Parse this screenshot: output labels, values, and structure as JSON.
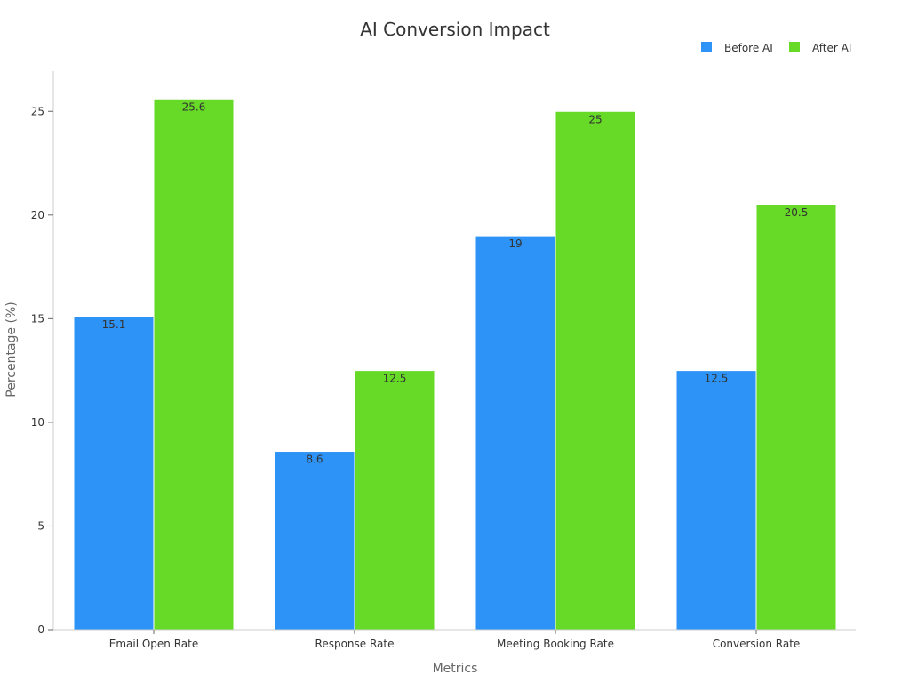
{
  "chart_data": {
    "type": "bar",
    "title": "AI Conversion Impact",
    "xlabel": "Metrics",
    "ylabel": "Percentage (%)",
    "categories": [
      "Email Open Rate",
      "Response Rate",
      "Meeting Booking Rate",
      "Conversion Rate"
    ],
    "series": [
      {
        "name": "Before AI",
        "color": "#2E93F7",
        "values": [
          15.1,
          8.6,
          19,
          12.5
        ]
      },
      {
        "name": "After AI",
        "color": "#66DA26",
        "values": [
          25.6,
          12.5,
          25,
          20.5
        ]
      }
    ],
    "ylim": [
      0,
      27
    ],
    "yticks": [
      0,
      5,
      10,
      15,
      20,
      25
    ],
    "grid": false,
    "legend_position": "top-right",
    "data_labels": true
  }
}
